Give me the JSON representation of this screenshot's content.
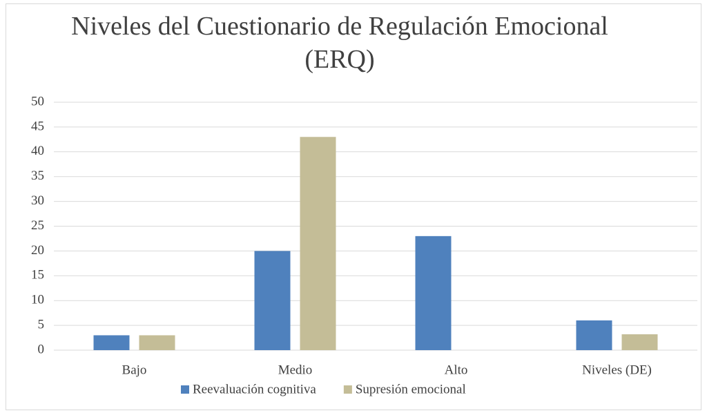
{
  "chart_data": {
    "type": "bar",
    "title": "Niveles del Cuestionario de Regulación Emocional (ERQ)",
    "categories": [
      "Bajo",
      "Medio",
      "Alto",
      "Niveles (DE)"
    ],
    "series": [
      {
        "name": "Reevaluación cognitiva",
        "color": "#4f81bd",
        "values": [
          3,
          20,
          23,
          6
        ]
      },
      {
        "name": "Supresión emocional",
        "color": "#c4bd97",
        "values": [
          3,
          43,
          0,
          3.2
        ]
      }
    ],
    "ylim": [
      0,
      50
    ],
    "yticks": [
      0,
      5,
      10,
      15,
      20,
      25,
      30,
      35,
      40,
      45,
      50
    ],
    "grid": true,
    "legend": "bottom"
  }
}
